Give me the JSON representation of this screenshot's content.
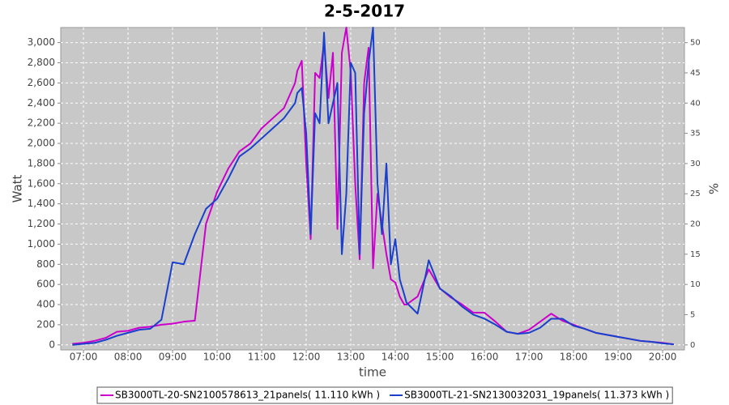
{
  "chart_data": {
    "type": "line",
    "title": "2-5-2017",
    "xlabel": "time",
    "ylabel": "Watt",
    "y2label": "%",
    "grid": true,
    "legend": "bottom",
    "x": [
      6.75,
      7,
      7.25,
      7.5,
      7.75,
      8,
      8.25,
      8.5,
      8.75,
      9,
      9.25,
      9.5,
      9.75,
      10,
      10.25,
      10.5,
      10.75,
      11,
      11.25,
      11.5,
      11.75,
      11.8,
      11.9,
      12.0,
      12.1,
      12.2,
      12.3,
      12.4,
      12.5,
      12.6,
      12.7,
      12.8,
      12.9,
      13.0,
      13.1,
      13.2,
      13.3,
      13.4,
      13.5,
      13.6,
      13.7,
      13.8,
      13.9,
      14.0,
      14.1,
      14.2,
      14.25,
      14.5,
      14.75,
      15,
      15.25,
      15.5,
      15.75,
      16,
      16.25,
      16.5,
      16.75,
      17,
      17.25,
      17.5,
      17.75,
      18,
      18.25,
      18.5,
      18.75,
      19,
      19.25,
      19.5,
      19.75,
      20,
      20.25
    ],
    "xlim": [
      6.49,
      20.49
    ],
    "xticks": [
      {
        "value": 7,
        "label": "07:00"
      },
      {
        "value": 8,
        "label": "08:00"
      },
      {
        "value": 9,
        "label": "09:00"
      },
      {
        "value": 10,
        "label": "10:00"
      },
      {
        "value": 11,
        "label": "11:00"
      },
      {
        "value": 12,
        "label": "12:00"
      },
      {
        "value": 13,
        "label": "13:00"
      },
      {
        "value": 14,
        "label": "14:00"
      },
      {
        "value": 15,
        "label": "15:00"
      },
      {
        "value": 16,
        "label": "16:00"
      },
      {
        "value": 17,
        "label": "17:00"
      },
      {
        "value": 18,
        "label": "18:00"
      },
      {
        "value": 19,
        "label": "19:00"
      },
      {
        "value": 20,
        "label": "20:00"
      }
    ],
    "ylim": [
      -50,
      3150
    ],
    "yticks": [
      0,
      200,
      400,
      600,
      800,
      {
        "value": 1000,
        "label": "1,000"
      },
      {
        "value": 1200,
        "label": "1,200"
      },
      {
        "value": 1400,
        "label": "1,400"
      },
      {
        "value": 1600,
        "label": "1,600"
      },
      {
        "value": 1800,
        "label": "1,800"
      },
      {
        "value": 2000,
        "label": "2,000"
      },
      {
        "value": 2200,
        "label": "2,200"
      },
      {
        "value": 2400,
        "label": "2,400"
      },
      {
        "value": 2600,
        "label": "2,600"
      },
      {
        "value": 2800,
        "label": "2,800"
      },
      {
        "value": 3000,
        "label": "3,000"
      }
    ],
    "y2lim": [
      -0.8333,
      52.5
    ],
    "y2ticks": [
      0,
      5,
      10,
      15,
      20,
      25,
      30,
      35,
      40,
      45,
      50
    ],
    "series": [
      {
        "name": "SB3000TL-20-SN2100578613_21panels( 11.110 kWh )",
        "color": "#cc00cc",
        "values": [
          10,
          20,
          40,
          70,
          130,
          140,
          170,
          180,
          200,
          210,
          230,
          240,
          1200,
          1520,
          1750,
          1920,
          2000,
          2150,
          2250,
          2350,
          2600,
          2720,
          2820,
          1800,
          1050,
          2700,
          2650,
          3000,
          2450,
          2900,
          1150,
          2900,
          3150,
          2700,
          1600,
          850,
          2600,
          2950,
          760,
          1500,
          1200,
          900,
          650,
          620,
          480,
          400,
          400,
          480,
          750,
          560,
          470,
          400,
          320,
          320,
          230,
          130,
          110,
          150,
          230,
          310,
          240,
          200,
          160,
          120,
          100,
          80,
          60,
          40,
          30,
          20,
          5
        ]
      },
      {
        "name": "SB3000TL-21-SN2130032031_19panels( 11.373 kWh )",
        "color": "#1a3fcc",
        "values": [
          0,
          10,
          20,
          50,
          90,
          120,
          150,
          160,
          250,
          820,
          800,
          1100,
          1350,
          1450,
          1650,
          1870,
          1950,
          2050,
          2150,
          2250,
          2400,
          2500,
          2550,
          2100,
          1100,
          2300,
          2200,
          3100,
          2200,
          2400,
          2600,
          900,
          1500,
          2800,
          2700,
          900,
          2300,
          2800,
          3150,
          1600,
          1100,
          1800,
          800,
          1050,
          650,
          500,
          420,
          310,
          840,
          560,
          480,
          380,
          300,
          260,
          200,
          130,
          110,
          120,
          170,
          260,
          260,
          190,
          160,
          120,
          100,
          80,
          60,
          40,
          30,
          15,
          5
        ]
      }
    ]
  }
}
